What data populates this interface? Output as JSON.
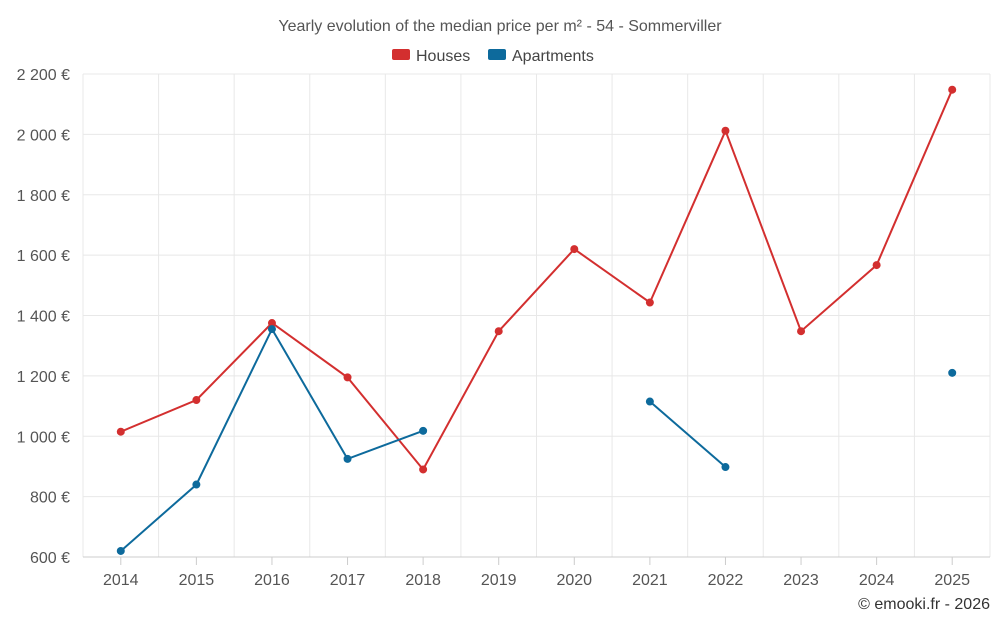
{
  "chart_data": {
    "type": "line",
    "title": "Yearly evolution of the median price per m² - 54 - Sommerviller",
    "xlabel": "",
    "ylabel": "",
    "categories": [
      "2014",
      "2015",
      "2016",
      "2017",
      "2018",
      "2019",
      "2020",
      "2021",
      "2022",
      "2023",
      "2024",
      "2025"
    ],
    "ylim": [
      600,
      2200
    ],
    "yticks": [
      600,
      800,
      1000,
      1200,
      1400,
      1600,
      1800,
      2000,
      2200
    ],
    "ytick_labels": [
      "600 €",
      "800 €",
      "1 000 €",
      "1 200 €",
      "1 400 €",
      "1 600 €",
      "1 800 €",
      "2 000 €",
      "2 200 €"
    ],
    "grid": true,
    "legend_position": "top-center",
    "series": [
      {
        "name": "Houses",
        "color": "#d32f2f",
        "values": [
          1015,
          1120,
          1375,
          1195,
          890,
          1348,
          1620,
          1443,
          2012,
          1348,
          1567,
          2148
        ]
      },
      {
        "name": "Apartments",
        "color": "#0d6a9c",
        "values": [
          620,
          840,
          1355,
          925,
          1018,
          null,
          null,
          1115,
          898,
          null,
          null,
          1210
        ]
      }
    ],
    "credit": "© emooki.fr - 2026"
  }
}
